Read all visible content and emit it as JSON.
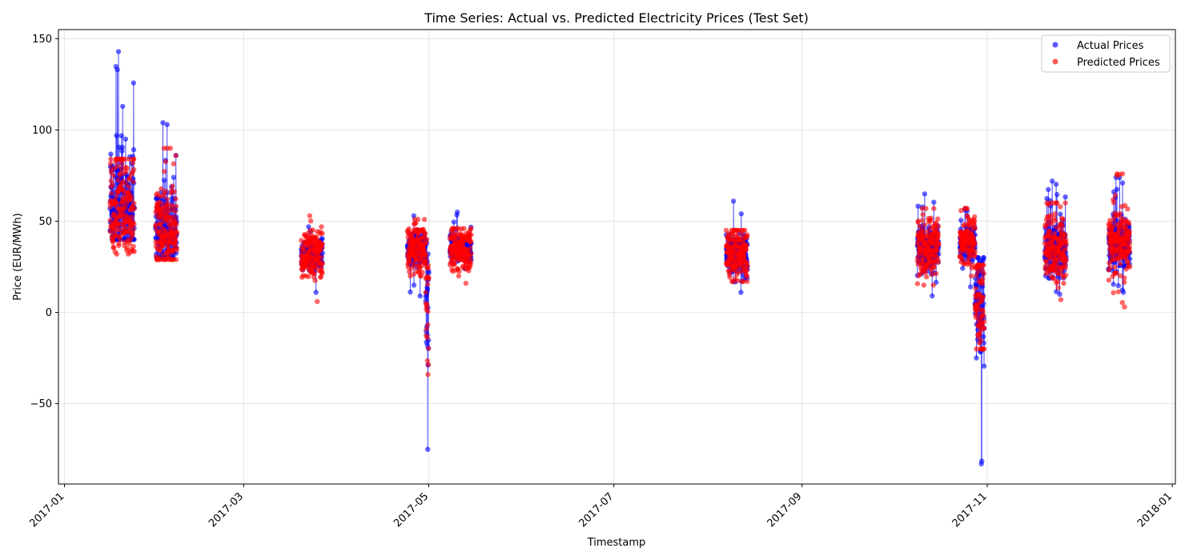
{
  "chart_data": {
    "type": "scatter",
    "title": "Time Series: Actual vs. Predicted Electricity Prices (Test Set)",
    "xlabel": "Timestamp",
    "ylabel": "Price (EUR/MWh)",
    "x_range": [
      "2016-12-30",
      "2018-01-02"
    ],
    "y_range": [
      -94,
      155
    ],
    "x_ticks": [
      "2017-01",
      "2017-03",
      "2017-05",
      "2017-07",
      "2017-09",
      "2017-11",
      "2018-01"
    ],
    "y_ticks": [
      -50,
      0,
      50,
      100,
      150
    ],
    "y_tick_labels": [
      "−50",
      "0",
      "50",
      "100",
      "150"
    ],
    "grid": true,
    "legend_position": "top-right",
    "series": [
      {
        "name": "Actual Prices",
        "color": "#0000ff"
      },
      {
        "name": "Predicted Prices",
        "color": "#ff0000"
      }
    ],
    "clusters": [
      {
        "start": "2017-01-16",
        "end": "2017-01-24",
        "actual": [
          40,
          143
        ],
        "predicted": [
          32,
          84
        ],
        "mid": 55
      },
      {
        "start": "2017-01-31",
        "end": "2017-02-07",
        "actual": [
          30,
          104
        ],
        "predicted": [
          29,
          90
        ],
        "mid": 45
      },
      {
        "start": "2017-03-20",
        "end": "2017-03-27",
        "actual": [
          11,
          47
        ],
        "predicted": [
          6,
          53
        ],
        "mid": 32
      },
      {
        "start": "2017-04-24",
        "end": "2017-04-30",
        "actual": [
          9,
          53
        ],
        "predicted": [
          20,
          51
        ],
        "mid": 35
      },
      {
        "start": "2017-04-30",
        "end": "2017-05-01",
        "actual": [
          -75,
          38
        ],
        "predicted": [
          -34,
          40
        ],
        "mid": 10
      },
      {
        "start": "2017-05-08",
        "end": "2017-05-15",
        "actual": [
          24,
          55
        ],
        "predicted": [
          16,
          46
        ],
        "mid": 35
      },
      {
        "start": "2017-08-07",
        "end": "2017-08-14",
        "actual": [
          11,
          61
        ],
        "predicted": [
          17,
          45
        ],
        "mid": 32
      },
      {
        "start": "2017-10-09",
        "end": "2017-10-16",
        "actual": [
          9,
          65
        ],
        "predicted": [
          15,
          57
        ],
        "mid": 35
      },
      {
        "start": "2017-10-23",
        "end": "2017-10-28",
        "actual": [
          14,
          57
        ],
        "predicted": [
          20,
          57
        ],
        "mid": 38
      },
      {
        "start": "2017-10-28",
        "end": "2017-10-31",
        "actual": [
          -83,
          30
        ],
        "predicted": [
          -20,
          26
        ],
        "mid": 5
      },
      {
        "start": "2017-11-20",
        "end": "2017-11-27",
        "actual": [
          10,
          72
        ],
        "predicted": [
          7,
          60
        ],
        "mid": 35
      },
      {
        "start": "2017-12-11",
        "end": "2017-12-18",
        "actual": [
          11,
          74
        ],
        "predicted": [
          3,
          76
        ],
        "mid": 38
      }
    ]
  }
}
